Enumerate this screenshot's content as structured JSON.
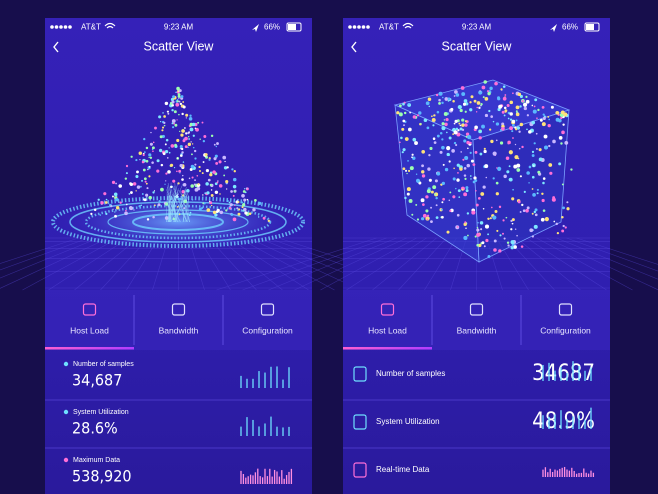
{
  "screens": [
    {
      "status": {
        "carrier": "AT&T",
        "time": "9:23 AM",
        "battery": "66%"
      },
      "title": "Scatter View",
      "tabs": [
        "Host Load",
        "Bandwidth",
        "Configuration"
      ],
      "stats": [
        {
          "label": "Number of samples",
          "value": "34,687"
        },
        {
          "label": "System Utilization",
          "value": "28.6%"
        },
        {
          "label": "Maximum Data",
          "value": "538,920"
        }
      ]
    },
    {
      "status": {
        "carrier": "AT&T",
        "time": "9:23 AM",
        "battery": "66%"
      },
      "title": "Scatter View",
      "tabs": [
        "Host Load",
        "Bandwidth",
        "Configuration"
      ],
      "stats": [
        {
          "label": "Number of samples",
          "value": "34687"
        },
        {
          "label": "System Utilization",
          "value": "48.9%"
        },
        {
          "label": "Real-time Data"
        }
      ]
    }
  ]
}
